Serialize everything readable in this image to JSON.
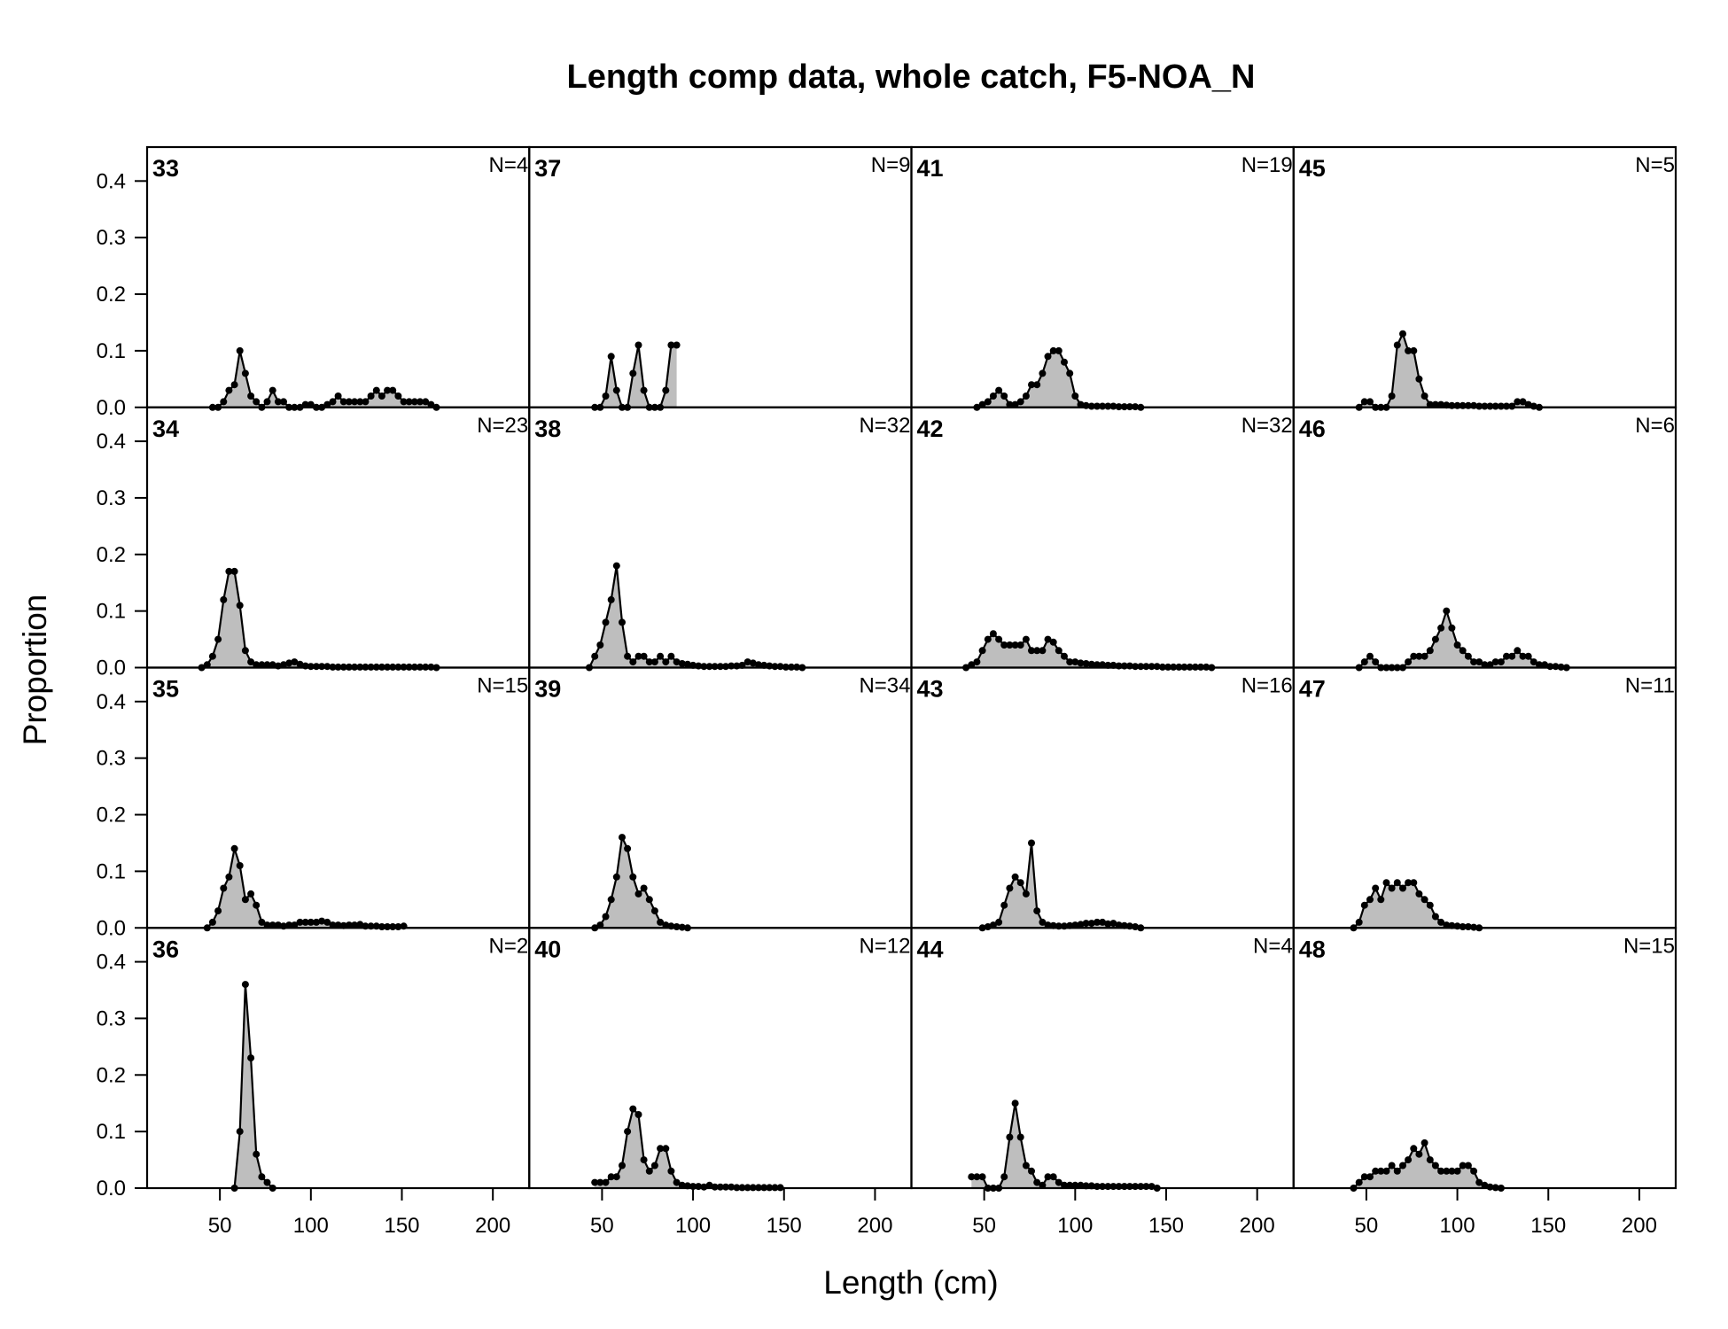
{
  "chart_data": {
    "type": "area",
    "title": "Length comp data, whole catch, F5-NOA_N",
    "xlabel": "Length (cm)",
    "ylabel": "Proportion",
    "xlim": [
      10,
      220
    ],
    "ylim": [
      0,
      0.46
    ],
    "x_ticks": [
      50,
      100,
      150,
      200
    ],
    "y_ticks": [
      0.0,
      0.1,
      0.2,
      0.3,
      0.4
    ],
    "x_tick_labels": [
      "50",
      "100",
      "150",
      "200"
    ],
    "y_tick_labels": [
      "0.0",
      "0.1",
      "0.2",
      "0.3",
      "0.4"
    ],
    "layout": "4x4 grid, panels ordered down columns",
    "fill_color": "#bebebe",
    "line_color": "#000000",
    "panels": [
      {
        "id": "33",
        "n_label": "N=4",
        "x": [
          46,
          49,
          52,
          55,
          58,
          61,
          64,
          67,
          70,
          73,
          76,
          79,
          82,
          85,
          88,
          91,
          94,
          97,
          100,
          103,
          106,
          109,
          112,
          115,
          118,
          121,
          124,
          127,
          130,
          133,
          136,
          139,
          142,
          145,
          148,
          151,
          154,
          157,
          160,
          163,
          166,
          169
        ],
        "y": [
          0,
          0,
          0.01,
          0.03,
          0.04,
          0.1,
          0.06,
          0.02,
          0.01,
          0,
          0.01,
          0.03,
          0.01,
          0.01,
          0,
          0,
          0,
          0.005,
          0.005,
          0,
          0,
          0.005,
          0.01,
          0.02,
          0.01,
          0.01,
          0.01,
          0.01,
          0.01,
          0.02,
          0.03,
          0.02,
          0.03,
          0.03,
          0.02,
          0.01,
          0.01,
          0.01,
          0.01,
          0.01,
          0.005,
          0
        ]
      },
      {
        "id": "34",
        "n_label": "N=23",
        "x": [
          40,
          43,
          46,
          49,
          52,
          55,
          58,
          61,
          64,
          67,
          70,
          73,
          76,
          79,
          82,
          85,
          88,
          91,
          94,
          97,
          100,
          103,
          106,
          109,
          112,
          115,
          118,
          121,
          124,
          127,
          130,
          133,
          136,
          139,
          142,
          145,
          148,
          151,
          154,
          157,
          160,
          163,
          166,
          169
        ],
        "y": [
          0,
          0.005,
          0.02,
          0.05,
          0.12,
          0.17,
          0.17,
          0.11,
          0.03,
          0.01,
          0.005,
          0.005,
          0.005,
          0.005,
          0.003,
          0.005,
          0.008,
          0.01,
          0.006,
          0.003,
          0.002,
          0.002,
          0.002,
          0.002,
          0.001,
          0.001,
          0.001,
          0.001,
          0.001,
          0.001,
          0.001,
          0.001,
          0.001,
          0.001,
          0.001,
          0.001,
          0.001,
          0.001,
          0.001,
          0.001,
          0.001,
          0.001,
          0.001,
          0
        ]
      },
      {
        "id": "35",
        "n_label": "N=15",
        "x": [
          43,
          46,
          49,
          52,
          55,
          58,
          61,
          64,
          67,
          70,
          73,
          76,
          79,
          82,
          85,
          88,
          91,
          94,
          97,
          100,
          103,
          106,
          109,
          112,
          115,
          118,
          121,
          124,
          127,
          130,
          133,
          136,
          139,
          142,
          145,
          148,
          151
        ],
        "y": [
          0,
          0.01,
          0.03,
          0.07,
          0.09,
          0.14,
          0.11,
          0.05,
          0.06,
          0.04,
          0.01,
          0.005,
          0.005,
          0.005,
          0.003,
          0.005,
          0.005,
          0.01,
          0.01,
          0.01,
          0.01,
          0.012,
          0.01,
          0.005,
          0.005,
          0.004,
          0.005,
          0.005,
          0.006,
          0.003,
          0.003,
          0.003,
          0.002,
          0.002,
          0.002,
          0.002,
          0.003
        ]
      },
      {
        "id": "36",
        "n_label": "N=2",
        "x": [
          58,
          61,
          64,
          67,
          70,
          73,
          76,
          79
        ],
        "y": [
          0,
          0.1,
          0.36,
          0.23,
          0.06,
          0.02,
          0.01,
          0
        ]
      },
      {
        "id": "37",
        "n_label": "N=9",
        "x": [
          46,
          49,
          52,
          55,
          58,
          61,
          64,
          67,
          70,
          73,
          76,
          79,
          82,
          85,
          88,
          91
        ],
        "y": [
          0,
          0,
          0.02,
          0.09,
          0.03,
          0,
          0,
          0.06,
          0.11,
          0.03,
          0,
          0,
          0,
          0.03,
          0.11,
          0.11
        ]
      },
      {
        "id": "38",
        "n_label": "N=32",
        "x": [
          43,
          46,
          49,
          52,
          55,
          58,
          61,
          64,
          67,
          70,
          73,
          76,
          79,
          82,
          85,
          88,
          91,
          94,
          97,
          100,
          103,
          106,
          109,
          112,
          115,
          118,
          121,
          124,
          127,
          130,
          133,
          136,
          139,
          142,
          145,
          148,
          151,
          154,
          157,
          160
        ],
        "y": [
          0,
          0.02,
          0.04,
          0.08,
          0.12,
          0.18,
          0.08,
          0.02,
          0.01,
          0.02,
          0.02,
          0.01,
          0.01,
          0.02,
          0.01,
          0.02,
          0.01,
          0.007,
          0.006,
          0.004,
          0.003,
          0.002,
          0.002,
          0.002,
          0.002,
          0.002,
          0.003,
          0.003,
          0.004,
          0.01,
          0.008,
          0.005,
          0.004,
          0.003,
          0.002,
          0.002,
          0.001,
          0.001,
          0.001,
          0
        ]
      },
      {
        "id": "39",
        "n_label": "N=34",
        "x": [
          46,
          49,
          52,
          55,
          58,
          61,
          64,
          67,
          70,
          73,
          76,
          79,
          82,
          85,
          88,
          91,
          94,
          97
        ],
        "y": [
          0,
          0.005,
          0.02,
          0.05,
          0.09,
          0.16,
          0.14,
          0.09,
          0.06,
          0.07,
          0.05,
          0.03,
          0.01,
          0.005,
          0.003,
          0.002,
          0.001,
          0
        ]
      },
      {
        "id": "40",
        "n_label": "N=12",
        "x": [
          46,
          49,
          52,
          55,
          58,
          61,
          64,
          67,
          70,
          73,
          76,
          79,
          82,
          85,
          88,
          91,
          94,
          97,
          100,
          103,
          106,
          109,
          112,
          115,
          118,
          121,
          124,
          127,
          130,
          133,
          136,
          139,
          142,
          145,
          148
        ],
        "y": [
          0.01,
          0.01,
          0.01,
          0.02,
          0.02,
          0.04,
          0.1,
          0.14,
          0.13,
          0.05,
          0.03,
          0.04,
          0.07,
          0.07,
          0.03,
          0.01,
          0.005,
          0.004,
          0.003,
          0.003,
          0.002,
          0.005,
          0.002,
          0.002,
          0.002,
          0.002,
          0.001,
          0.001,
          0.001,
          0.001,
          0.001,
          0.001,
          0.001,
          0.001,
          0.001
        ]
      },
      {
        "id": "41",
        "n_label": "N=19",
        "x": [
          46,
          49,
          52,
          55,
          58,
          61,
          64,
          67,
          70,
          73,
          76,
          79,
          82,
          85,
          88,
          91,
          94,
          97,
          100,
          103,
          106,
          109,
          112,
          115,
          118,
          121,
          124,
          127,
          130,
          133,
          136
        ],
        "y": [
          0,
          0.005,
          0.01,
          0.02,
          0.03,
          0.02,
          0.005,
          0.005,
          0.01,
          0.02,
          0.04,
          0.04,
          0.06,
          0.09,
          0.1,
          0.1,
          0.08,
          0.06,
          0.02,
          0.005,
          0.003,
          0.002,
          0.002,
          0.002,
          0.002,
          0.002,
          0.001,
          0.001,
          0.001,
          0.001,
          0
        ]
      },
      {
        "id": "42",
        "n_label": "N=32",
        "x": [
          40,
          43,
          46,
          49,
          52,
          55,
          58,
          61,
          64,
          67,
          70,
          73,
          76,
          79,
          82,
          85,
          88,
          91,
          94,
          97,
          100,
          103,
          106,
          109,
          112,
          115,
          118,
          121,
          124,
          127,
          130,
          133,
          136,
          139,
          142,
          145,
          148,
          151,
          154,
          157,
          160,
          163,
          166,
          169,
          172,
          175
        ],
        "y": [
          0,
          0.005,
          0.01,
          0.03,
          0.05,
          0.06,
          0.05,
          0.04,
          0.04,
          0.04,
          0.04,
          0.05,
          0.03,
          0.03,
          0.03,
          0.05,
          0.045,
          0.03,
          0.02,
          0.01,
          0.01,
          0.008,
          0.007,
          0.006,
          0.005,
          0.005,
          0.004,
          0.004,
          0.003,
          0.003,
          0.003,
          0.002,
          0.002,
          0.002,
          0.002,
          0.002,
          0.001,
          0.001,
          0.001,
          0.001,
          0.001,
          0.001,
          0.001,
          0.001,
          0.001,
          0
        ]
      },
      {
        "id": "43",
        "n_label": "N=16",
        "x": [
          49,
          52,
          55,
          58,
          61,
          64,
          67,
          70,
          73,
          76,
          79,
          82,
          85,
          88,
          91,
          94,
          97,
          100,
          103,
          106,
          109,
          112,
          115,
          118,
          121,
          124,
          127,
          130,
          133,
          136
        ],
        "y": [
          0,
          0.002,
          0.005,
          0.01,
          0.04,
          0.07,
          0.09,
          0.08,
          0.06,
          0.15,
          0.03,
          0.01,
          0.005,
          0.004,
          0.003,
          0.003,
          0.004,
          0.005,
          0.006,
          0.008,
          0.008,
          0.01,
          0.01,
          0.007,
          0.008,
          0.005,
          0.004,
          0.003,
          0.002,
          0
        ]
      },
      {
        "id": "44",
        "n_label": "N=4",
        "x": [
          43,
          46,
          49,
          52,
          55,
          58,
          61,
          64,
          67,
          70,
          73,
          76,
          79,
          82,
          85,
          88,
          91,
          94,
          97,
          100,
          103,
          106,
          109,
          112,
          115,
          118,
          121,
          124,
          127,
          130,
          133,
          136,
          139,
          142,
          145
        ],
        "y": [
          0.02,
          0.02,
          0.02,
          0,
          0,
          0,
          0.02,
          0.09,
          0.15,
          0.09,
          0.04,
          0.03,
          0.01,
          0.005,
          0.02,
          0.02,
          0.01,
          0.005,
          0.005,
          0.005,
          0.005,
          0.004,
          0.004,
          0.003,
          0.003,
          0.003,
          0.003,
          0.003,
          0.003,
          0.003,
          0.003,
          0.003,
          0.003,
          0.003,
          0
        ]
      },
      {
        "id": "45",
        "n_label": "N=5",
        "x": [
          46,
          49,
          52,
          55,
          58,
          61,
          64,
          67,
          70,
          73,
          76,
          79,
          82,
          85,
          88,
          91,
          94,
          97,
          100,
          103,
          106,
          109,
          112,
          115,
          118,
          121,
          124,
          127,
          130,
          133,
          136,
          139,
          142,
          145
        ],
        "y": [
          0,
          0.01,
          0.01,
          0,
          0,
          0,
          0.02,
          0.11,
          0.13,
          0.1,
          0.1,
          0.05,
          0.02,
          0.005,
          0.005,
          0.005,
          0.004,
          0.003,
          0.003,
          0.003,
          0.003,
          0.003,
          0.002,
          0.002,
          0.002,
          0.002,
          0.002,
          0.002,
          0.002,
          0.01,
          0.01,
          0.005,
          0.002,
          0
        ]
      },
      {
        "id": "46",
        "n_label": "N=6",
        "x": [
          46,
          49,
          52,
          55,
          58,
          61,
          64,
          67,
          70,
          73,
          76,
          79,
          82,
          85,
          88,
          91,
          94,
          97,
          100,
          103,
          106,
          109,
          112,
          115,
          118,
          121,
          124,
          127,
          130,
          133,
          136,
          139,
          142,
          145,
          148,
          151,
          154,
          157,
          160
        ],
        "y": [
          0,
          0.01,
          0.02,
          0.01,
          0,
          0,
          0,
          0,
          0,
          0.01,
          0.02,
          0.02,
          0.02,
          0.03,
          0.05,
          0.07,
          0.1,
          0.07,
          0.04,
          0.03,
          0.02,
          0.01,
          0.01,
          0.005,
          0.005,
          0.01,
          0.01,
          0.02,
          0.02,
          0.03,
          0.02,
          0.02,
          0.01,
          0.005,
          0.005,
          0.002,
          0.002,
          0.001,
          0
        ]
      },
      {
        "id": "47",
        "n_label": "N=11",
        "x": [
          43,
          46,
          49,
          52,
          55,
          58,
          61,
          64,
          67,
          70,
          73,
          76,
          79,
          82,
          85,
          88,
          91,
          94,
          97,
          100,
          103,
          106,
          109,
          112
        ],
        "y": [
          0,
          0.01,
          0.04,
          0.05,
          0.07,
          0.05,
          0.08,
          0.07,
          0.08,
          0.07,
          0.08,
          0.08,
          0.06,
          0.05,
          0.04,
          0.02,
          0.01,
          0.005,
          0.004,
          0.003,
          0.002,
          0.002,
          0.001,
          0
        ]
      },
      {
        "id": "48",
        "n_label": "N=15",
        "x": [
          43,
          46,
          49,
          52,
          55,
          58,
          61,
          64,
          67,
          70,
          73,
          76,
          79,
          82,
          85,
          88,
          91,
          94,
          97,
          100,
          103,
          106,
          109,
          112,
          115,
          118,
          121,
          124
        ],
        "y": [
          0,
          0.01,
          0.02,
          0.02,
          0.03,
          0.03,
          0.03,
          0.04,
          0.03,
          0.04,
          0.05,
          0.07,
          0.06,
          0.08,
          0.05,
          0.04,
          0.03,
          0.03,
          0.03,
          0.03,
          0.04,
          0.04,
          0.03,
          0.01,
          0.005,
          0.002,
          0.001,
          0
        ]
      }
    ]
  }
}
